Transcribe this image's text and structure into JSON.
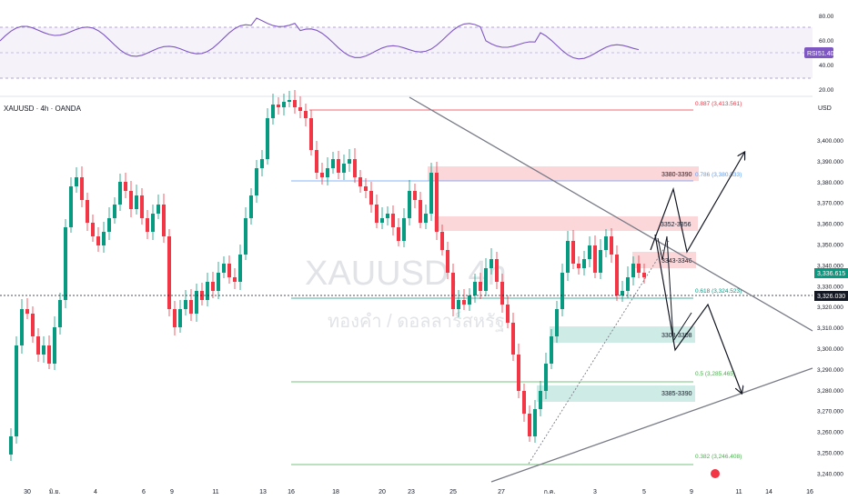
{
  "symbol_title": "XAUUSD · 4h · OANDA",
  "watermark": {
    "symbol": "XAUUSD, 4h",
    "subtitle": "ทองคำ / ดอลลาร์สหรัฐ"
  },
  "price_axis": {
    "currency": "USD",
    "labels": [
      "3,400.000",
      "3,390.000",
      "3,380.000",
      "3,370.000",
      "3,360.000",
      "3,350.000",
      "3,340.000",
      "3,330.000",
      "3,320.000",
      "3,310.000",
      "3,300.000",
      "3,290.000",
      "3,280.000",
      "3,270.000",
      "3,260.000",
      "3,250.000",
      "3,240.000"
    ],
    "current_price": "3,336.615",
    "crosshair_price": "3,326.030"
  },
  "rsi": {
    "label": "RSI",
    "value": "51.40",
    "levels": [
      "80.00",
      "60.00",
      "40.00",
      "20.00"
    ]
  },
  "time_axis": {
    "labels": [
      "30",
      "มิ.ย.",
      "4",
      "6",
      "9",
      "11",
      "13",
      "16",
      "18",
      "20",
      "23",
      "25",
      "27",
      "ก.ค.",
      "3",
      "5",
      "9",
      "11",
      "14",
      "16"
    ]
  },
  "fib_levels": [
    {
      "label": "0.887 (3,413.561)",
      "color": "#f23645"
    },
    {
      "label": "0.786 (3,380.533)",
      "color": "#5b9cf6"
    },
    {
      "label": "0.618 (3,324.523)",
      "color": "#089981"
    },
    {
      "label": "0.5 (3,285.465)",
      "color": "#4caf50"
    },
    {
      "label": "0.382 (3,246.408)",
      "color": "#4caf50"
    }
  ],
  "zones": [
    {
      "label": "3380-3390",
      "type": "resistance"
    },
    {
      "label": "3352-3356",
      "type": "resistance"
    },
    {
      "label": "3343-3346",
      "type": "resistance"
    },
    {
      "label": "3303-3308",
      "type": "support"
    },
    {
      "label": "3385-3390",
      "type": "support"
    }
  ],
  "colors": {
    "bull": "#089981",
    "bear": "#f23645",
    "rsi_line": "#7e57c2",
    "trendline": "#787b86"
  }
}
